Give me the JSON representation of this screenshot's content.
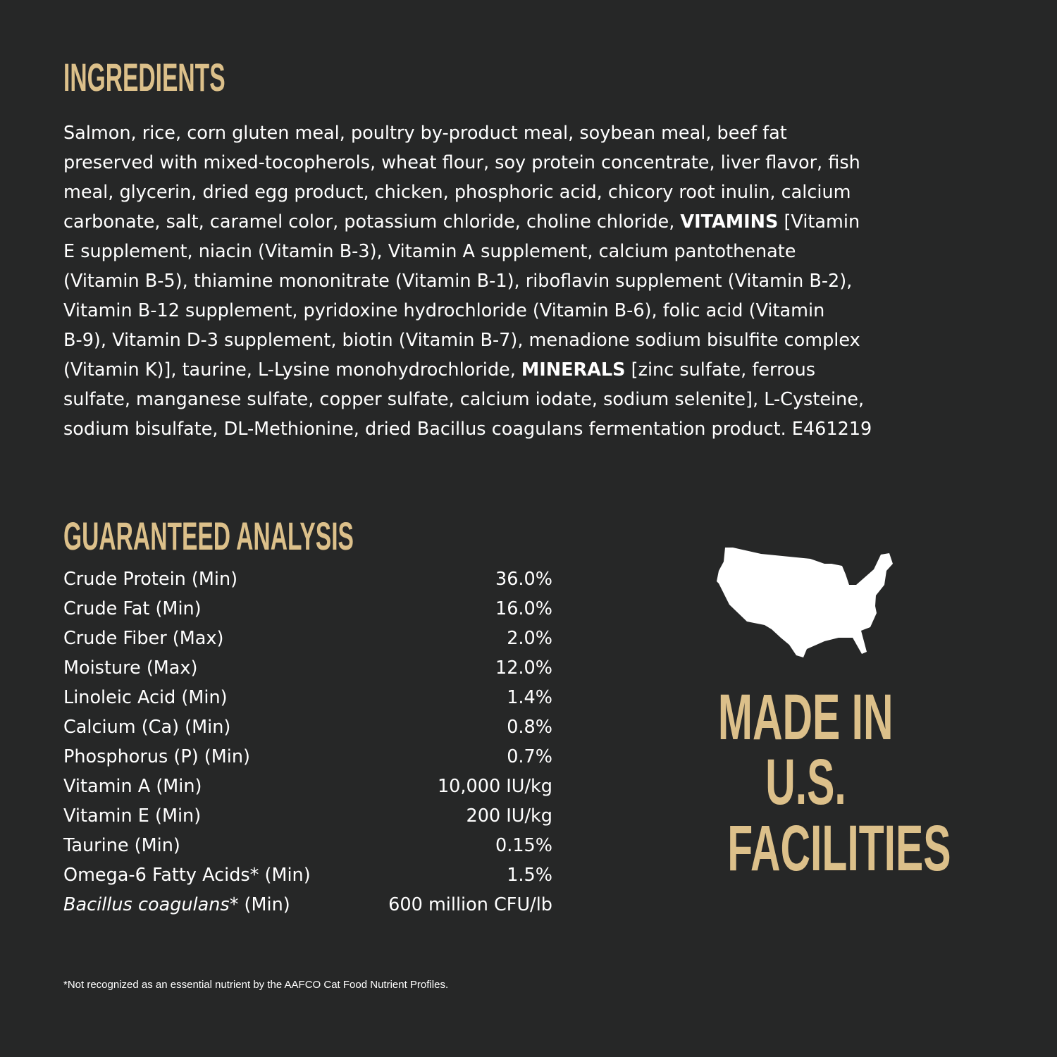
{
  "ingredients": {
    "title": "INGREDIENTS",
    "lines": [
      [
        {
          "text": "Salmon, rice, corn gluten meal, poultry by-product meal, soybean meal, beef fat"
        }
      ],
      [
        {
          "text": "preserved with mixed-tocopherols, wheat flour, soy protein concentrate, liver flavor, fish"
        }
      ],
      [
        {
          "text": "meal, glycerin, dried egg product, chicken, phosphoric acid, chicory root inulin, calcium"
        }
      ],
      [
        {
          "text": "carbonate, salt, caramel color, potassium chloride, choline chloride, "
        },
        {
          "text": "VITAMINS",
          "bold": true
        },
        {
          "text": " [Vitamin"
        }
      ],
      [
        {
          "text": "E supplement, niacin (Vitamin B-3), Vitamin A supplement, calcium pantothenate"
        }
      ],
      [
        {
          "text": "(Vitamin B-5), thiamine mononitrate (Vitamin B-1), riboflavin supplement (Vitamin B-2),"
        }
      ],
      [
        {
          "text": "Vitamin B-12 supplement, pyridoxine hydrochloride (Vitamin B-6), folic acid (Vitamin"
        }
      ],
      [
        {
          "text": "B-9), Vitamin D-3 supplement, biotin (Vitamin B-7), menadione sodium bisulfite complex"
        }
      ],
      [
        {
          "text": "(Vitamin K)], taurine, L-Lysine monohydrochloride, "
        },
        {
          "text": "MINERALS",
          "bold": true
        },
        {
          "text": " [zinc sulfate, ferrous"
        }
      ],
      [
        {
          "text": "sulfate, manganese sulfate, copper sulfate, calcium iodate, sodium selenite], L-Cysteine,"
        }
      ],
      [
        {
          "text": "sodium bisulfate, DL-Methionine, dried Bacillus coagulans fermentation product. E461219"
        }
      ]
    ]
  },
  "analysis": {
    "title": "GUARANTEED ANALYSIS",
    "rows": [
      {
        "label": "Crude Protein (Min)",
        "value": "36.0%"
      },
      {
        "label": "Crude Fat (Min)",
        "value": "16.0%"
      },
      {
        "label": "Crude Fiber (Max)",
        "value": "2.0%"
      },
      {
        "label": "Moisture (Max)",
        "value": "12.0%"
      },
      {
        "label": "Linoleic Acid (Min)",
        "value": "1.4%"
      },
      {
        "label": "Calcium (Ca) (Min)",
        "value": "0.8%"
      },
      {
        "label": "Phosphorus (P) (Min)",
        "value": "0.7%"
      },
      {
        "label": "Vitamin A (Min)",
        "value": "10,000 IU/kg"
      },
      {
        "label": "Vitamin E (Min)",
        "value": "200 IU/kg"
      },
      {
        "label": "Taurine (Min)",
        "value": "0.15%"
      },
      {
        "label": "Omega-6 Fatty Acids* (Min)",
        "value": "1.5%"
      },
      {
        "label_italic": "Bacillus coagulans",
        "label": "* (Min)",
        "value": "600 million CFU/lb"
      }
    ],
    "footnote": "*Not recognized as an essential nutrient by the AAFCO Cat Food Nutrient Profiles."
  },
  "badge": {
    "icon": "usa-map-icon",
    "lines": [
      "MADE IN",
      "U.S.",
      "FACILITIES"
    ]
  },
  "colors": {
    "background": "#262727",
    "accent": "#dcc08a",
    "text": "#ffffff"
  }
}
